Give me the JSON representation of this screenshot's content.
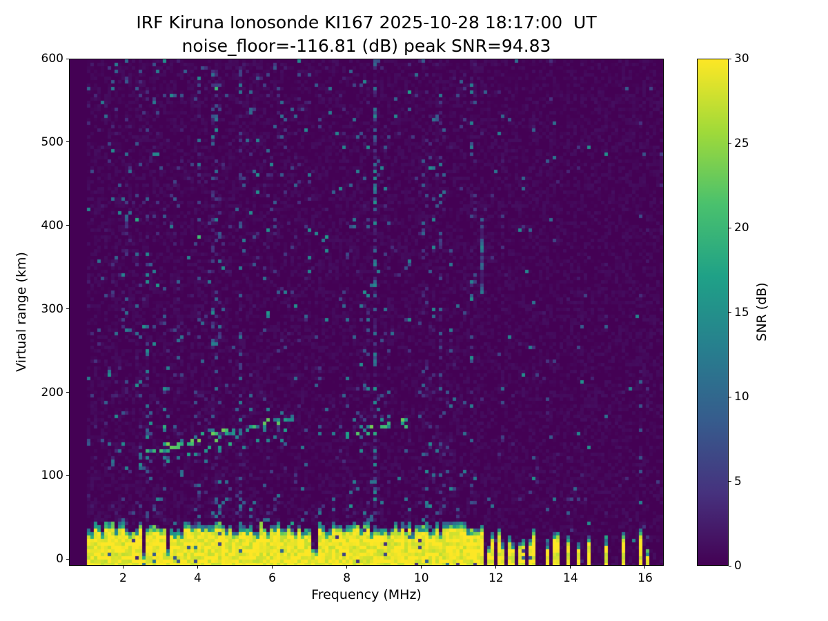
{
  "chart_data": {
    "type": "heatmap",
    "title_line1": "IRF Kiruna Ionosonde KI167 2025-10-28 18:17:00  UT",
    "title_line2": "noise_floor=-116.81 (dB) peak SNR=94.83",
    "xlabel": "Frequency (MHz)",
    "ylabel": "Virtual range (km)",
    "colorbar_label": "SNR (dB)",
    "x_ticks": [
      2,
      4,
      6,
      8,
      10,
      12,
      14,
      16
    ],
    "y_ticks": [
      0,
      100,
      200,
      300,
      400,
      500,
      600
    ],
    "colorbar_ticks": [
      0,
      5,
      10,
      15,
      20,
      25,
      30
    ],
    "x_range_mhz": [
      0.55,
      16.5
    ],
    "data_x_start_mhz": 1.0,
    "y_range_km": [
      -8,
      600
    ],
    "snr_scale": [
      0,
      30
    ],
    "colormap": "viridis",
    "viridis_stops": [
      "#440154",
      "#46327e",
      "#365c8d",
      "#277f8e",
      "#1fa187",
      "#4ac16d",
      "#a0da39",
      "#fde725"
    ],
    "noise_floor_db": -116.81,
    "peak_snr_db": 94.83,
    "ground_clutter": {
      "base_top_km": 38,
      "jitter_km": 16,
      "sparse_above_mhz": 11.65,
      "stripe_frequencies_mhz": [
        11.78,
        11.93,
        12.08,
        12.22,
        12.36,
        12.5,
        12.64,
        12.78,
        12.92,
        13.06,
        13.38,
        13.62,
        13.92,
        14.2,
        14.48,
        14.95,
        15.42,
        15.88,
        16.12
      ]
    },
    "echo_traces": [
      {
        "f_start": 2.4,
        "f_end": 6.6,
        "range_start_km": 126,
        "range_end_km": 168,
        "density": 0.55,
        "second_strand": true
      },
      {
        "f_start": 7.9,
        "f_end": 9.6,
        "range_start_km": 148,
        "range_end_km": 163,
        "density": 0.4,
        "second_strand": false
      }
    ],
    "vertical_streaks": [
      {
        "f": 8.78,
        "km_min": -8,
        "km_max": 600,
        "strength": 0.45
      },
      {
        "f": 11.62,
        "km_min": 320,
        "km_max": 410,
        "strength": 0.85
      },
      {
        "f": 4.45,
        "km_min": -8,
        "km_max": 600,
        "strength": 0.18
      },
      {
        "f": 2.05,
        "km_min": 60,
        "km_max": 600,
        "strength": 0.15
      }
    ],
    "noise": {
      "speckle_density": 0.05,
      "seed": 167
    }
  }
}
